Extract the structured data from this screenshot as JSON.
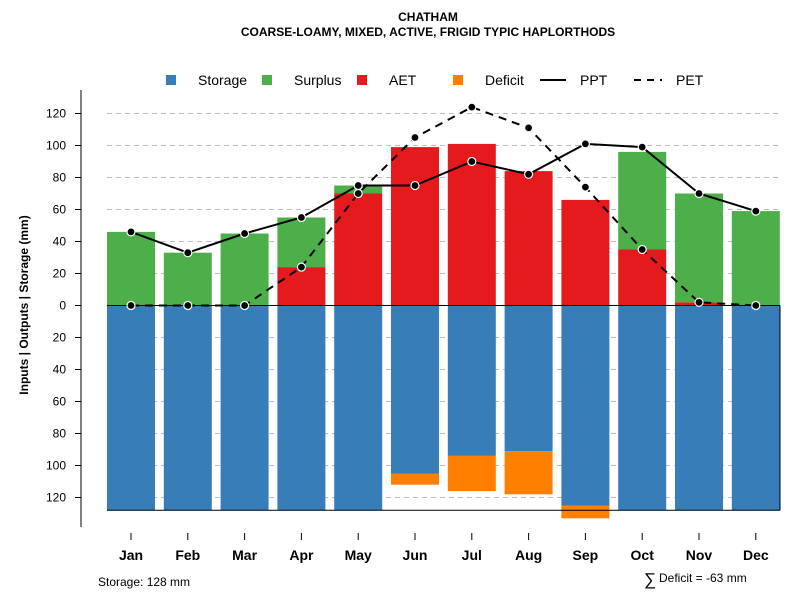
{
  "chart_data": {
    "type": "bar",
    "title": "CHATHAM",
    "subtitle": "COARSE-LOAMY, MIXED, ACTIVE, FRIGID TYPIC HAPLORTHODS",
    "ylabel": "Inputs | Outputs | Storage    (mm)",
    "xlabel": "",
    "categories": [
      "Jan",
      "Feb",
      "Mar",
      "Apr",
      "May",
      "Jun",
      "Jul",
      "Aug",
      "Sep",
      "Oct",
      "Nov",
      "Dec"
    ],
    "ylim": [
      -132,
      132
    ],
    "yticks": [
      120,
      100,
      80,
      60,
      40,
      20,
      0,
      20,
      40,
      60,
      80,
      100,
      120
    ],
    "ytick_values": [
      120,
      100,
      80,
      60,
      40,
      20,
      0,
      -20,
      -40,
      -60,
      -80,
      -100,
      -120
    ],
    "grid": true,
    "legend_position": "top",
    "legend": [
      "Storage",
      "Surplus",
      "AET",
      "Deficit",
      "PPT",
      "PET"
    ],
    "colors": {
      "storage": "#377EB8",
      "surplus": "#4DAF4A",
      "aet": "#E41A1C",
      "deficit": "#FF7F00",
      "line": "#000000",
      "grid": "#bdbdbd"
    },
    "series": [
      {
        "name": "Storage",
        "kind": "bar_below",
        "values": [
          128,
          128,
          128,
          128,
          128,
          105,
          94,
          91,
          125,
          128,
          128,
          128
        ]
      },
      {
        "name": "Deficit",
        "kind": "bar_below_stacked",
        "values": [
          0,
          0,
          0,
          0,
          0,
          7,
          22,
          27,
          8,
          0,
          0,
          0
        ]
      },
      {
        "name": "AET",
        "kind": "bar_above",
        "values": [
          0,
          0,
          0,
          24,
          70,
          99,
          101,
          84,
          66,
          35,
          2,
          0
        ]
      },
      {
        "name": "Surplus",
        "kind": "bar_above_stacked",
        "values": [
          46,
          33,
          45,
          31,
          5,
          0,
          0,
          0,
          0,
          61,
          68,
          59
        ]
      },
      {
        "name": "PPT",
        "kind": "line_solid",
        "values": [
          46,
          33,
          45,
          55,
          75,
          75,
          90,
          82,
          101,
          99,
          70,
          59
        ]
      },
      {
        "name": "PET",
        "kind": "line_dashed",
        "values": [
          0,
          0,
          0,
          24,
          70,
          105,
          124,
          111,
          74,
          35,
          2,
          0
        ]
      }
    ],
    "annotations": {
      "storage_note": "Storage: 128 mm",
      "deficit_sum": "Deficit = -63 mm",
      "sum_symbol": "∑"
    }
  }
}
